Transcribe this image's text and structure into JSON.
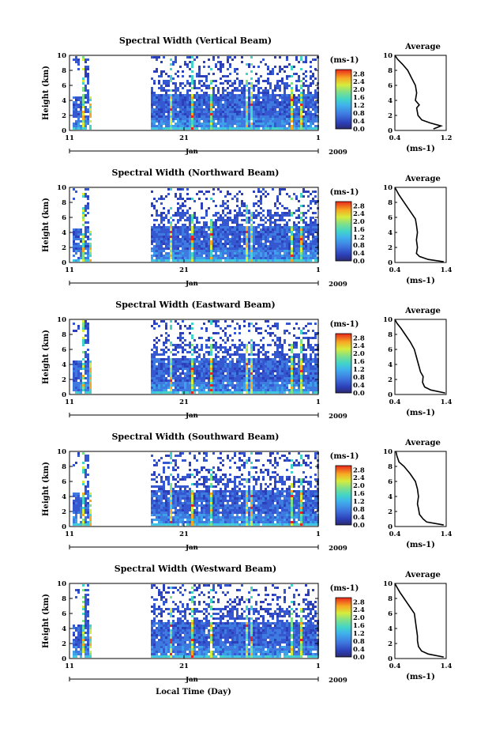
{
  "chart_data": [
    {
      "type": "heatmap",
      "title": "Spectral Width (Vertical Beam)",
      "ylabel": "Height (km)",
      "ylim": [
        0,
        10
      ],
      "yticks": [
        "0",
        "2",
        "4",
        "6",
        "8",
        "10"
      ],
      "xticks": [
        "11",
        "21",
        "1"
      ],
      "month_label": "Jan",
      "year_label": "2009",
      "colorbar": {
        "unit": "(ms-1)",
        "ticks": [
          "0.0",
          "0.4",
          "0.8",
          "1.2",
          "1.6",
          "2.0",
          "2.4",
          "2.8"
        ],
        "range": [
          0,
          2.8
        ]
      },
      "profile": {
        "title": "Average",
        "xticks": [
          "0.4",
          "1.2"
        ],
        "xlim": [
          0.4,
          1.2
        ],
        "xlabel": "(ms-1)",
        "points": [
          [
            1.0,
            0.2
          ],
          [
            1.12,
            0.6
          ],
          [
            0.95,
            1
          ],
          [
            0.82,
            1.4
          ],
          [
            0.76,
            2
          ],
          [
            0.74,
            3
          ],
          [
            0.78,
            3.4
          ],
          [
            0.72,
            4
          ],
          [
            0.74,
            5
          ],
          [
            0.72,
            6
          ],
          [
            0.66,
            7
          ],
          [
            0.6,
            8
          ],
          [
            0.52,
            8.8
          ],
          [
            0.44,
            9.5
          ],
          [
            0.4,
            10
          ]
        ]
      }
    },
    {
      "type": "heatmap",
      "title": "Spectral Width (Northward Beam)",
      "ylabel": "Height (km)",
      "ylim": [
        0,
        10
      ],
      "yticks": [
        "0",
        "2",
        "4",
        "6",
        "8",
        "10"
      ],
      "xticks": [
        "11",
        "21",
        "1"
      ],
      "month_label": "Jan",
      "year_label": "2009",
      "colorbar": {
        "unit": "(ms-1)",
        "ticks": [
          "0.0",
          "0.4",
          "0.8",
          "1.2",
          "1.6",
          "2.0",
          "2.4",
          "2.8"
        ],
        "range": [
          0,
          2.8
        ]
      },
      "profile": {
        "title": "Average",
        "xticks": [
          "0.4",
          "1.4"
        ],
        "xlim": [
          0.4,
          1.4
        ],
        "xlabel": "(ms-1)",
        "points": [
          [
            1.35,
            0.1
          ],
          [
            1.05,
            0.4
          ],
          [
            0.88,
            0.8
          ],
          [
            0.82,
            1.2
          ],
          [
            0.84,
            2
          ],
          [
            0.82,
            3
          ],
          [
            0.84,
            4
          ],
          [
            0.82,
            5
          ],
          [
            0.8,
            5.8
          ],
          [
            0.72,
            6.6
          ],
          [
            0.64,
            7.4
          ],
          [
            0.56,
            8.2
          ],
          [
            0.48,
            9
          ],
          [
            0.4,
            10
          ]
        ]
      }
    },
    {
      "type": "heatmap",
      "title": "Spectral Width (Eastward Beam)",
      "ylabel": "Height (km)",
      "ylim": [
        0,
        10
      ],
      "yticks": [
        "0",
        "2",
        "4",
        "6",
        "8",
        "10"
      ],
      "xticks": [
        "11",
        "21",
        "1"
      ],
      "month_label": "Jan",
      "year_label": "2009",
      "colorbar": {
        "unit": "(ms-1)",
        "ticks": [
          "0.0",
          "0.4",
          "0.8",
          "1.2",
          "1.6",
          "2.0",
          "2.4",
          "2.8"
        ],
        "range": [
          0,
          2.8
        ]
      },
      "profile": {
        "title": "Average",
        "xticks": [
          "0.4",
          "1.4"
        ],
        "xlim": [
          0.4,
          1.4
        ],
        "xlabel": "(ms-1)",
        "points": [
          [
            1.38,
            0.2
          ],
          [
            1.1,
            0.6
          ],
          [
            0.98,
            1
          ],
          [
            0.94,
            1.6
          ],
          [
            0.95,
            2.4
          ],
          [
            0.9,
            3
          ],
          [
            0.86,
            4
          ],
          [
            0.82,
            5
          ],
          [
            0.78,
            6
          ],
          [
            0.7,
            7
          ],
          [
            0.6,
            8
          ],
          [
            0.52,
            8.8
          ],
          [
            0.44,
            9.5
          ],
          [
            0.4,
            10
          ]
        ]
      }
    },
    {
      "type": "heatmap",
      "title": "Spectral Width (Southward Beam)",
      "ylabel": "Height (km)",
      "ylim": [
        0,
        10
      ],
      "yticks": [
        "0",
        "2",
        "4",
        "6",
        "8",
        "10"
      ],
      "xticks": [
        "11",
        "21",
        "1"
      ],
      "month_label": "Jan",
      "year_label": "2009",
      "colorbar": {
        "unit": "(ms-1)",
        "ticks": [
          "0.0",
          "0.4",
          "0.8",
          "1.2",
          "1.6",
          "2.0",
          "2.4",
          "2.8"
        ],
        "range": [
          0,
          2.8
        ]
      },
      "profile": {
        "title": "Average",
        "xticks": [
          "0.4",
          "1.4"
        ],
        "xlim": [
          0.4,
          1.4
        ],
        "xlabel": "(ms-1)",
        "points": [
          [
            1.35,
            0.2
          ],
          [
            1.02,
            0.6
          ],
          [
            0.95,
            1
          ],
          [
            0.88,
            1.6
          ],
          [
            0.86,
            2.4
          ],
          [
            0.84,
            3
          ],
          [
            0.86,
            4
          ],
          [
            0.84,
            5
          ],
          [
            0.8,
            6
          ],
          [
            0.7,
            7
          ],
          [
            0.58,
            8
          ],
          [
            0.48,
            8.6
          ],
          [
            0.44,
            9.4
          ],
          [
            0.42,
            10
          ]
        ]
      }
    },
    {
      "type": "heatmap",
      "title": "Spectral Width (Westward Beam)",
      "ylabel": "Height (km)",
      "ylim": [
        0,
        10
      ],
      "yticks": [
        "0",
        "2",
        "4",
        "6",
        "8",
        "10"
      ],
      "xticks": [
        "11",
        "21",
        "1"
      ],
      "month_label": "Jan",
      "year_label": "2009",
      "colorbar": {
        "unit": "(ms-1)",
        "ticks": [
          "0.0",
          "0.4",
          "0.8",
          "1.2",
          "1.6",
          "2.0",
          "2.4",
          "2.8"
        ],
        "range": [
          0,
          2.8
        ]
      },
      "profile": {
        "title": "Average",
        "xticks": [
          "0.4",
          "1.4"
        ],
        "xlim": [
          0.4,
          1.4
        ],
        "xlabel": "(ms-1)",
        "points": [
          [
            1.35,
            0.2
          ],
          [
            1.05,
            0.6
          ],
          [
            0.92,
            1
          ],
          [
            0.86,
            1.6
          ],
          [
            0.84,
            2.4
          ],
          [
            0.84,
            3
          ],
          [
            0.82,
            4
          ],
          [
            0.8,
            5
          ],
          [
            0.78,
            6
          ],
          [
            0.68,
            7
          ],
          [
            0.58,
            8
          ],
          [
            0.5,
            8.8
          ],
          [
            0.44,
            9.5
          ],
          [
            0.4,
            10
          ]
        ]
      }
    }
  ],
  "xlabel": "Local Time (Day)"
}
